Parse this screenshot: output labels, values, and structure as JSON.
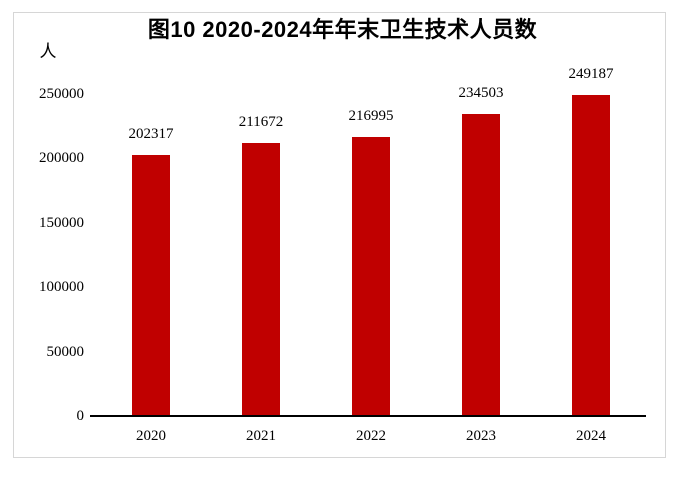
{
  "title": "图10 2020-2024年年末卫生技术人员数",
  "unit_label": "人",
  "chart_data": {
    "type": "bar",
    "title": "图10 2020-2024年年末卫生技术人员数",
    "categories": [
      "2020",
      "2021",
      "2022",
      "2023",
      "2024"
    ],
    "values": [
      202317,
      211672,
      216995,
      234503,
      249187
    ],
    "xlabel": "",
    "ylabel": "人",
    "ylim": [
      0,
      250000
    ],
    "yticks": [
      0,
      50000,
      100000,
      150000,
      200000,
      250000
    ],
    "grid": false,
    "legend": "none",
    "data_labels": true,
    "bar_color": "#c00000",
    "axis_color": "#000000",
    "frame_color": "#d6d6d6"
  }
}
